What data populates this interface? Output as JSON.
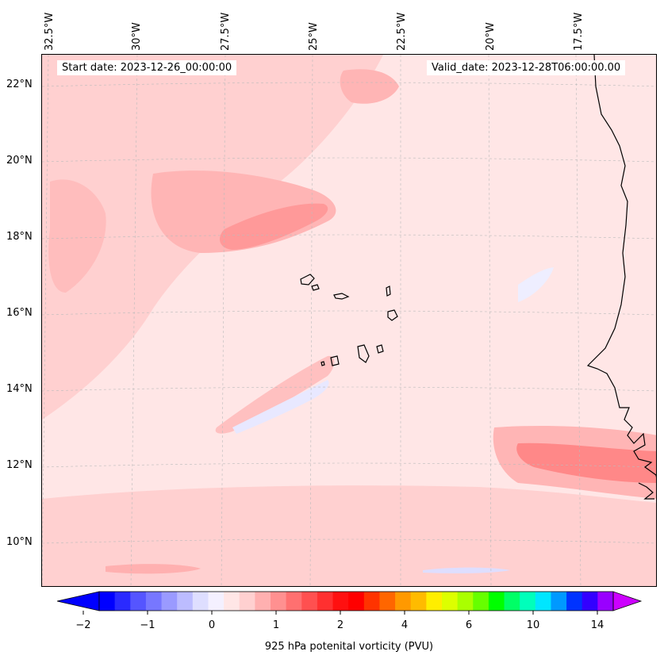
{
  "map": {
    "info_start": "Start date: 2023-12-26_00:00:00",
    "info_valid": "Valid_date: 2023-12-28T06:00:00.00",
    "lon_labels": [
      "32.5°W",
      "30°W",
      "27.5°W",
      "25°W",
      "22.5°W",
      "20°W",
      "17.5°W"
    ],
    "lat_labels": [
      "22°N",
      "20°N",
      "18°N",
      "16°N",
      "14°N",
      "12°N",
      "10°N"
    ],
    "lon_values": [
      -32.5,
      -30,
      -27.5,
      -25,
      -22.5,
      -20,
      -17.5
    ],
    "lat_values": [
      22,
      20,
      18,
      16,
      14,
      12,
      10
    ],
    "extent": {
      "lon_min": -33,
      "lon_max": -15,
      "lat_min": 9,
      "lat_max": 23
    },
    "gridlines": true,
    "background_color": "#ffe6e6",
    "coastline_color": "#000000",
    "features": [
      "Cape Verde islands",
      "West African coastline (Senegal, Gambia, Guinea-Bissau)"
    ]
  },
  "colorbar": {
    "label": "925 hPa potenital vorticity (PVU)",
    "tick_labels": [
      "−2",
      "−1",
      "0",
      "1",
      "2",
      "4",
      "6",
      "10",
      "14"
    ],
    "colors": [
      "#0000ff",
      "#2a2aff",
      "#5555ff",
      "#7777ff",
      "#9a9aff",
      "#bcbcff",
      "#dedeff",
      "#f4f0ff",
      "#ffe6e6",
      "#ffd0d0",
      "#ffb0b0",
      "#ff9090",
      "#ff7070",
      "#ff5050",
      "#ff3030",
      "#ff1010",
      "#ff0000",
      "#ff3300",
      "#ff6600",
      "#ff9900",
      "#ffbb00",
      "#ffee00",
      "#ddff00",
      "#aaff00",
      "#66ff00",
      "#00ff00",
      "#00ff66",
      "#00ffbb",
      "#00e6ff",
      "#0099ff",
      "#0033ff",
      "#3300ff",
      "#9900ff"
    ],
    "extend_min_color": "#0000ff",
    "extend_max_color": "#cc00ff"
  }
}
